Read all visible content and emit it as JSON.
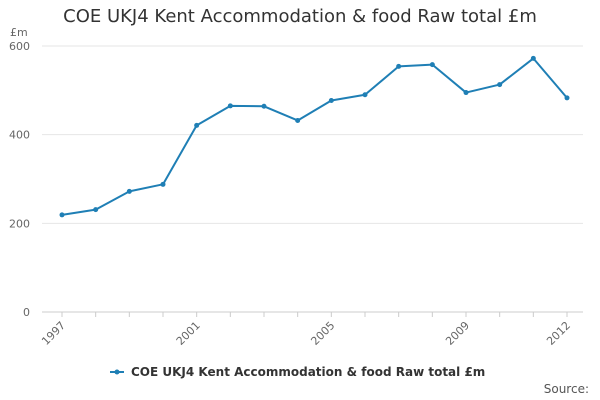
{
  "chart_data": {
    "type": "line",
    "title": "COE UKJ4 Kent Accommodation & food Raw total £m",
    "ylabel": "£m",
    "xlabel": "",
    "x": [
      1997,
      1998,
      1999,
      2000,
      2001,
      2002,
      2003,
      2004,
      2005,
      2006,
      2007,
      2008,
      2009,
      2010,
      2011,
      2012
    ],
    "x_tick_labels": [
      "1997",
      "2001",
      "2005",
      "2009",
      "2012"
    ],
    "y_tick_labels": [
      "0",
      "200",
      "400",
      "600"
    ],
    "ylim": [
      0,
      600
    ],
    "xlim": [
      1997,
      2012
    ],
    "grid": true,
    "legend_position": "bottom",
    "series": [
      {
        "name": "COE UKJ4 Kent Accommodation & food Raw total £m",
        "color": "#1f7fb5",
        "values": [
          219,
          231,
          272,
          288,
          421,
          465,
          464,
          432,
          477,
          490,
          554,
          558,
          495,
          513,
          572,
          483
        ]
      }
    ],
    "source": "Source:"
  }
}
